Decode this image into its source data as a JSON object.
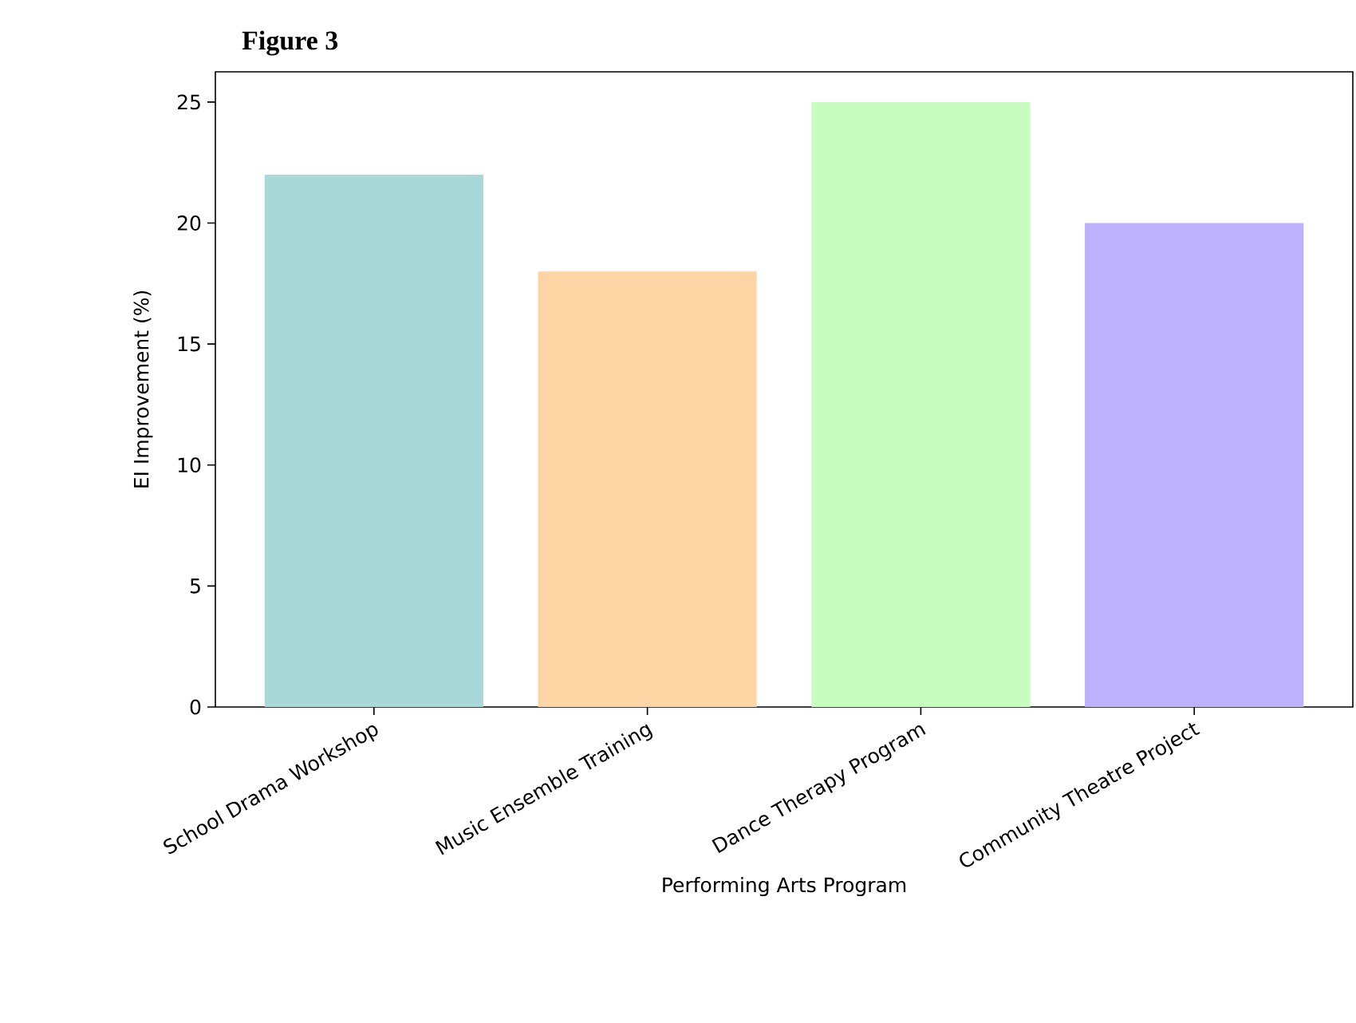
{
  "chart_data": {
    "type": "bar",
    "title": "Figure 3",
    "xlabel": "Performing Arts Program",
    "ylabel": "EI Improvement (%)",
    "categories": [
      "School Drama Workshop",
      "Music Ensemble Training",
      "Dance Therapy Program",
      "Community Theatre Project"
    ],
    "values": [
      22,
      18,
      25,
      20
    ],
    "colors": [
      "#a8d8d8",
      "#fdd5a5",
      "#c8fdc0",
      "#bdb0fd"
    ],
    "ylim": [
      0,
      26.25
    ],
    "yticks": [
      0,
      5,
      10,
      15,
      20,
      25
    ],
    "grid": false
  }
}
